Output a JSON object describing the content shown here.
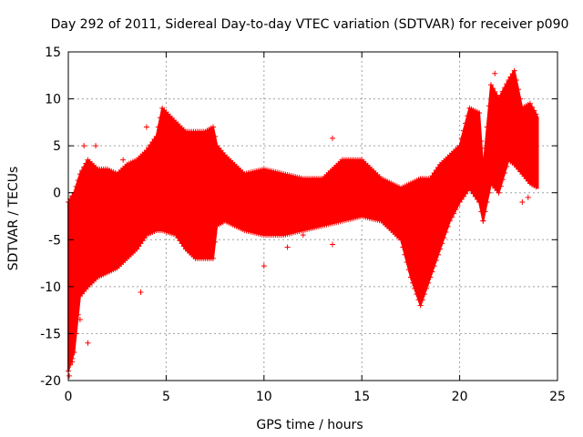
{
  "chart_data": {
    "type": "scatter",
    "title": "Day 292 of 2011, Sidereal Day-to-day VTEC variation (SDTVAR) for receiver p090",
    "xlabel": "GPS time / hours",
    "ylabel": "SDTVAR / TECUs",
    "xlim": [
      0,
      25
    ],
    "ylim": [
      -20,
      15
    ],
    "xticks": [
      "0",
      "5",
      "10",
      "15",
      "20",
      "25"
    ],
    "yticks": [
      "-20",
      "-15",
      "-10",
      "-5",
      "0",
      "5",
      "10",
      "15"
    ],
    "grid": true,
    "marker": "+",
    "color": "#ff0000",
    "envelope": {
      "x": [
        0.0,
        0.3,
        0.6,
        1.0,
        1.5,
        2.0,
        2.5,
        3.0,
        3.5,
        4.0,
        4.5,
        4.8,
        5.5,
        6.0,
        6.5,
        7.0,
        7.4,
        7.6,
        8.0,
        9.0,
        10.0,
        11.0,
        12.0,
        13.0,
        14.0,
        15.0,
        16.0,
        17.0,
        17.5,
        18.0,
        18.5,
        19.0,
        19.5,
        20.0,
        20.5,
        21.0,
        21.2,
        21.6,
        22.0,
        22.5,
        22.8,
        23.2,
        23.6,
        24.0
      ],
      "upper": [
        -1.0,
        0.0,
        2.0,
        3.5,
        2.5,
        2.5,
        2.0,
        3.0,
        3.5,
        4.5,
        6.0,
        9.0,
        7.5,
        6.5,
        6.5,
        6.5,
        7.0,
        5.0,
        4.0,
        2.0,
        2.5,
        2.0,
        1.5,
        1.5,
        3.5,
        3.5,
        1.5,
        0.5,
        1.0,
        1.5,
        1.5,
        3.0,
        4.0,
        5.0,
        9.0,
        8.5,
        2.5,
        11.5,
        10.0,
        12.0,
        13.0,
        9.0,
        9.5,
        8.0
      ],
      "lower": [
        -19.0,
        -17.0,
        -11.0,
        -10.0,
        -9.0,
        -8.5,
        -8.0,
        -7.0,
        -6.0,
        -4.5,
        -4.0,
        -4.0,
        -4.5,
        -6.0,
        -7.0,
        -7.0,
        -7.0,
        -3.5,
        -3.0,
        -4.0,
        -4.5,
        -4.5,
        -4.0,
        -3.5,
        -3.0,
        -2.5,
        -3.0,
        -5.0,
        -9.0,
        -12.0,
        -9.0,
        -6.0,
        -3.0,
        -1.0,
        0.5,
        -1.0,
        -3.0,
        1.0,
        0.0,
        3.5,
        3.0,
        2.0,
        1.0,
        0.5
      ]
    },
    "outliers": [
      {
        "x": 0.05,
        "y": -19.5
      },
      {
        "x": 0.2,
        "y": -18.0
      },
      {
        "x": 0.6,
        "y": -13.5
      },
      {
        "x": 1.0,
        "y": -16.0
      },
      {
        "x": 0.8,
        "y": 5.0
      },
      {
        "x": 1.4,
        "y": 5.0
      },
      {
        "x": 2.8,
        "y": 3.5
      },
      {
        "x": 3.7,
        "y": -10.6
      },
      {
        "x": 4.0,
        "y": 7.0
      },
      {
        "x": 10.0,
        "y": -7.8
      },
      {
        "x": 11.2,
        "y": -5.8
      },
      {
        "x": 12.0,
        "y": -4.5
      },
      {
        "x": 13.5,
        "y": 5.8
      },
      {
        "x": 13.5,
        "y": -5.5
      },
      {
        "x": 21.2,
        "y": -3.0
      },
      {
        "x": 21.8,
        "y": 12.7
      },
      {
        "x": 23.2,
        "y": -1.0
      },
      {
        "x": 23.5,
        "y": -0.5
      }
    ]
  }
}
